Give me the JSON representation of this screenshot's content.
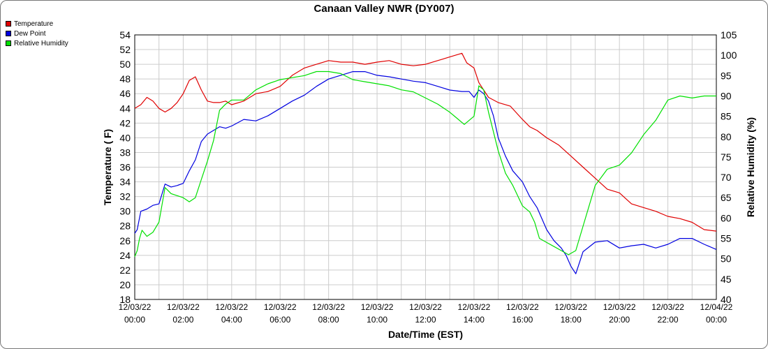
{
  "chart_data": {
    "type": "line",
    "title": "Canaan Valley NWR (DY007)",
    "xlabel": "Date/Time (EST)",
    "ylabel": "Temperature ( F)",
    "y2label": "Relative Humidity (%)",
    "ylim": [
      18,
      54
    ],
    "y2lim": [
      40,
      105
    ],
    "xlim": [
      "12/03/22 00:00",
      "12/04/22 00:00"
    ],
    "grid": true,
    "legend_position": "top-left",
    "x_ticks": [
      {
        "date": "12/03/22",
        "time": "00:00"
      },
      {
        "date": "12/03/22",
        "time": "02:00"
      },
      {
        "date": "12/03/22",
        "time": "04:00"
      },
      {
        "date": "12/03/22",
        "time": "06:00"
      },
      {
        "date": "12/03/22",
        "time": "08:00"
      },
      {
        "date": "12/03/22",
        "time": "10:00"
      },
      {
        "date": "12/03/22",
        "time": "12:00"
      },
      {
        "date": "12/03/22",
        "time": "14:00"
      },
      {
        "date": "12/03/22",
        "time": "16:00"
      },
      {
        "date": "12/03/22",
        "time": "18:00"
      },
      {
        "date": "12/03/22",
        "time": "20:00"
      },
      {
        "date": "12/03/22",
        "time": "22:00"
      },
      {
        "date": "12/04/22",
        "time": "00:00"
      }
    ],
    "y_ticks": [
      18,
      20,
      22,
      24,
      26,
      28,
      30,
      32,
      34,
      36,
      38,
      40,
      42,
      44,
      46,
      48,
      50,
      52,
      54
    ],
    "y2_ticks": [
      40,
      45,
      50,
      55,
      60,
      65,
      70,
      75,
      80,
      85,
      90,
      95,
      100,
      105
    ],
    "series": [
      {
        "name": "Temperature",
        "axis": "left",
        "color": "#e00000",
        "x_hours": [
          0,
          0.25,
          0.5,
          0.75,
          1.0,
          1.25,
          1.5,
          1.75,
          2.0,
          2.25,
          2.5,
          2.75,
          3.0,
          3.25,
          3.5,
          3.75,
          4.0,
          4.5,
          5.0,
          5.5,
          6.0,
          6.5,
          7.0,
          7.5,
          8.0,
          8.5,
          9.0,
          9.5,
          10.0,
          10.5,
          11.0,
          11.5,
          12.0,
          12.5,
          13.0,
          13.5,
          13.7,
          14.0,
          14.2,
          14.4,
          14.6,
          15.0,
          15.5,
          16.0,
          16.3,
          16.6,
          17.0,
          17.5,
          18.0,
          18.5,
          19.0,
          19.5,
          20.0,
          20.5,
          21.0,
          21.5,
          22.0,
          22.5,
          23.0,
          23.5,
          24.0
        ],
        "values": [
          44.0,
          44.5,
          45.5,
          45.0,
          44.0,
          43.5,
          44.0,
          44.8,
          46.0,
          47.8,
          48.3,
          46.5,
          45.0,
          44.8,
          44.8,
          45.0,
          44.5,
          45.0,
          46.0,
          46.3,
          47.0,
          48.5,
          49.5,
          50.0,
          50.5,
          50.3,
          50.3,
          50.0,
          50.3,
          50.5,
          50.0,
          49.8,
          50.0,
          50.5,
          51.0,
          51.5,
          50.2,
          49.5,
          47.5,
          46.5,
          45.5,
          44.8,
          44.3,
          42.5,
          41.5,
          41.0,
          40.0,
          39.0,
          37.5,
          36.0,
          34.5,
          33.0,
          32.5,
          31.0,
          30.5,
          30.0,
          29.3,
          29.0,
          28.5,
          27.5,
          27.3
        ]
      },
      {
        "name": "Dew Point",
        "axis": "left",
        "color": "#0000e0",
        "x_hours": [
          0,
          0.1,
          0.25,
          0.5,
          0.75,
          1.0,
          1.25,
          1.5,
          1.75,
          2.0,
          2.25,
          2.5,
          2.75,
          3.0,
          3.25,
          3.5,
          3.75,
          4.0,
          4.5,
          5.0,
          5.5,
          6.0,
          6.5,
          7.0,
          7.5,
          8.0,
          8.5,
          9.0,
          9.5,
          10.0,
          10.5,
          11.0,
          11.5,
          12.0,
          12.5,
          13.0,
          13.5,
          13.8,
          14.0,
          14.2,
          14.4,
          14.6,
          14.8,
          15.0,
          15.3,
          15.6,
          16.0,
          16.3,
          16.6,
          17.0,
          17.3,
          17.6,
          17.8,
          18.0,
          18.2,
          18.5,
          19.0,
          19.5,
          20.0,
          20.5,
          21.0,
          21.5,
          22.0,
          22.5,
          23.0,
          23.5,
          24.0
        ],
        "values": [
          27.0,
          27.5,
          30.0,
          30.3,
          30.8,
          31.0,
          33.7,
          33.3,
          33.5,
          33.8,
          35.5,
          37.0,
          39.5,
          40.5,
          41.0,
          41.5,
          41.3,
          41.6,
          42.5,
          42.3,
          43.0,
          44.0,
          45.0,
          45.8,
          47.0,
          48.0,
          48.5,
          49.0,
          49.0,
          48.5,
          48.3,
          48.0,
          47.7,
          47.5,
          47.0,
          46.5,
          46.3,
          46.3,
          45.5,
          46.5,
          46.0,
          45.0,
          43.0,
          40.0,
          37.5,
          35.5,
          34.0,
          32.0,
          30.5,
          27.5,
          26.0,
          25.0,
          24.0,
          22.5,
          21.5,
          24.5,
          25.8,
          26.0,
          25.0,
          25.3,
          25.5,
          25.0,
          25.5,
          26.3,
          26.3,
          25.5,
          24.8
        ]
      },
      {
        "name": "Relative Humidity",
        "axis": "right",
        "color": "#00e000",
        "x_hours": [
          0,
          0.1,
          0.2,
          0.3,
          0.5,
          0.75,
          1.0,
          1.25,
          1.5,
          1.75,
          2.0,
          2.25,
          2.5,
          2.75,
          3.0,
          3.25,
          3.5,
          3.75,
          4.0,
          4.5,
          5.0,
          5.5,
          6.0,
          6.5,
          7.0,
          7.5,
          8.0,
          8.5,
          9.0,
          9.5,
          10.0,
          10.5,
          11.0,
          11.5,
          12.0,
          12.5,
          13.0,
          13.3,
          13.6,
          14.0,
          14.2,
          14.4,
          14.6,
          15.0,
          15.3,
          15.6,
          16.0,
          16.3,
          16.5,
          16.7,
          17.0,
          17.3,
          17.6,
          17.9,
          18.2,
          18.5,
          19.0,
          19.5,
          20.0,
          20.5,
          21.0,
          21.5,
          22.0,
          22.5,
          23.0,
          23.5,
          24.0
        ],
        "values": [
          50.5,
          52,
          55,
          57,
          55.5,
          56.5,
          59,
          67.5,
          66,
          65.5,
          65,
          64,
          65,
          69.5,
          74,
          79,
          86.5,
          88,
          89,
          89,
          91.5,
          93,
          94,
          94.5,
          95,
          96,
          96,
          95.5,
          94,
          93.5,
          93,
          92.5,
          91.5,
          91,
          89.5,
          88,
          86,
          84.5,
          83,
          85,
          92.5,
          91.5,
          86,
          76.5,
          71,
          68,
          63,
          61.5,
          59,
          55,
          54,
          53,
          52,
          51,
          52,
          58,
          68,
          72,
          73,
          76,
          80.5,
          84,
          89,
          90,
          89.5,
          90,
          90
        ]
      }
    ]
  }
}
